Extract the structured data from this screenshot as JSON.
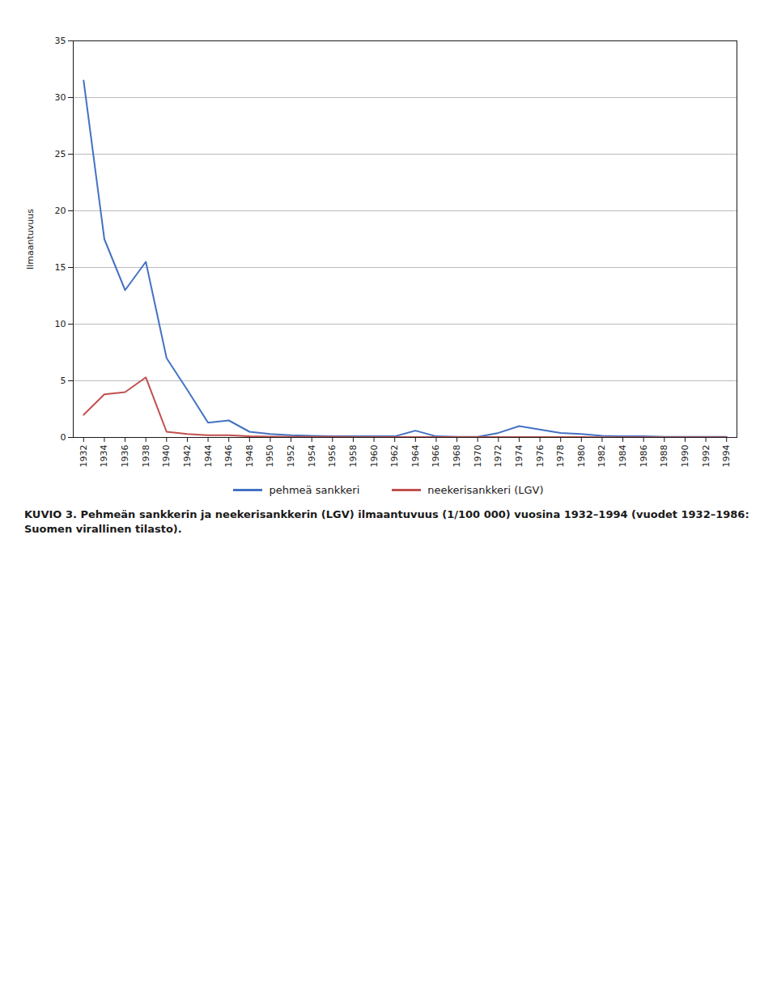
{
  "chart_data": {
    "type": "line",
    "title": "KUVIO 3. Pehmeän sankkerin ja neekerisankkerin (LGV) ilmaantuvuus (1/100 000) vuosina 1932–1994 (vuodet 1932–1986: Suomen virallinen tilasto).",
    "y_label": "Ilmaantuvuus",
    "x": [
      1932,
      1934,
      1936,
      1938,
      1940,
      1942,
      1944,
      1946,
      1948,
      1950,
      1952,
      1954,
      1956,
      1958,
      1960,
      1962,
      1964,
      1966,
      1968,
      1970,
      1972,
      1974,
      1976,
      1978,
      1980,
      1982,
      1984,
      1986,
      1988,
      1990,
      1992,
      1994
    ],
    "series": [
      {
        "name": "pehmeä sankkeri",
        "color": "#4472C4",
        "values": [
          31.5,
          17.5,
          13.0,
          15.5,
          7.0,
          4.2,
          1.3,
          1.5,
          0.5,
          0.3,
          0.2,
          0.15,
          0.1,
          0.1,
          0.1,
          0.1,
          0.6,
          0.1,
          0.05,
          0.05,
          0.4,
          1.0,
          0.7,
          0.4,
          0.3,
          0.15,
          0.1,
          0.1,
          0.05,
          0.05,
          0.05,
          0.05
        ]
      },
      {
        "name": "neekerisankkeri (LGV)",
        "color": "#C0504D",
        "values": [
          2.0,
          3.8,
          4.0,
          5.3,
          0.5,
          0.3,
          0.2,
          0.2,
          0.1,
          0.08,
          0.05,
          0.05,
          0.05,
          0.04,
          0.04,
          0.04,
          0.04,
          0.03,
          0.03,
          0.03,
          0.03,
          0.03,
          0.03,
          0.03,
          0.03,
          0.02,
          0.02,
          0.02,
          0.02,
          0.02,
          0.02,
          0.02
        ]
      }
    ],
    "xlim": [
      1931,
      1995
    ],
    "xticks": [
      1932,
      1934,
      1936,
      1938,
      1940,
      1942,
      1944,
      1946,
      1948,
      1950,
      1952,
      1954,
      1956,
      1958,
      1960,
      1962,
      1964,
      1966,
      1968,
      1970,
      1972,
      1974,
      1976,
      1978,
      1980,
      1982,
      1984,
      1986,
      1988,
      1990,
      1992,
      1994
    ],
    "ylim": [
      0,
      35
    ],
    "yticks": [
      0,
      5,
      10,
      15,
      20,
      25,
      30,
      35
    ],
    "grid": "y",
    "legend": "bottom"
  }
}
